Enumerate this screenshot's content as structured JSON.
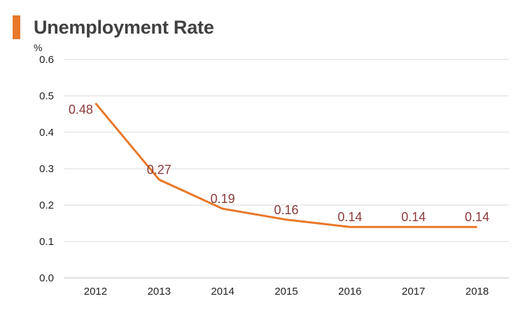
{
  "title": "Unemployment Rate",
  "chart_data": {
    "type": "line",
    "title": "Unemployment Rate",
    "ylabel": "%",
    "xlabel": "",
    "categories": [
      "2012",
      "2013",
      "2014",
      "2015",
      "2016",
      "2017",
      "2018"
    ],
    "series": [
      {
        "values": [
          0.48,
          0.27,
          0.19,
          0.16,
          0.14,
          0.14,
          0.14
        ]
      }
    ],
    "data_labels": [
      "0.48",
      "0.27",
      "0.19",
      "0.16",
      "0.14",
      "0.14",
      "0.14"
    ],
    "ylim": [
      0,
      0.6
    ],
    "yticks": [
      "0.0",
      "0.1",
      "0.2",
      "0.3",
      "0.4",
      "0.5",
      "0.6"
    ],
    "grid": true,
    "legend": "none",
    "colors": {
      "line": "#e8782a",
      "label": "#8b3a3a",
      "grid": "#d9d9d9",
      "accent_bar": "#e8782a"
    }
  }
}
